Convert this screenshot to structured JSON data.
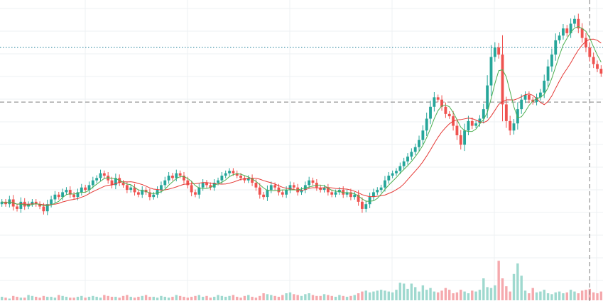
{
  "chart_data": {
    "type": "candlestick",
    "title": "",
    "xlabel": "",
    "ylabel": "",
    "grid": true,
    "legend": "none",
    "ylim": [
      0,
      100
    ],
    "volume_ylim": [
      0,
      100
    ],
    "reference_lines": {
      "dotted_level": 91,
      "crosshair_level": 68,
      "crosshair_x_index": 155
    },
    "colors": {
      "up": "#26a69a",
      "down": "#ef5350",
      "volume_up": "#9fd9cf",
      "volume_down": "#f5a9ad",
      "ma_fast": "#4caf50",
      "ma_slow": "#e53935",
      "grid": "#eef0f3",
      "dotted_line": "#1e7f99",
      "crosshair": "#7c7c7c"
    },
    "series": [
      {
        "name": "",
        "type": "ohlc",
        "close": [
          26,
          25,
          27,
          24,
          23,
          26,
          24,
          25,
          26,
          25,
          24,
          22,
          25,
          27,
          29,
          28,
          30,
          31,
          29,
          28,
          30,
          32,
          31,
          33,
          35,
          36,
          38,
          37,
          35,
          33,
          36,
          34,
          33,
          31,
          32,
          30,
          29,
          31,
          30,
          28,
          29,
          31,
          33,
          35,
          37,
          36,
          38,
          37,
          35,
          33,
          30,
          29,
          32,
          34,
          33,
          32,
          34,
          35,
          37,
          38,
          39,
          38,
          37,
          36,
          35,
          36,
          34,
          32,
          29,
          28,
          31,
          33,
          32,
          30,
          29,
          31,
          33,
          32,
          30,
          31,
          33,
          35,
          34,
          32,
          31,
          32,
          30,
          29,
          30,
          31,
          29,
          30,
          28,
          29,
          26,
          23,
          25,
          28,
          30,
          31,
          32,
          35,
          37,
          38,
          39,
          41,
          43,
          45,
          47,
          49,
          52,
          56,
          61,
          66,
          70,
          69,
          66,
          63,
          62,
          58,
          54,
          50,
          56,
          60,
          58,
          59,
          61,
          65,
          75,
          87,
          91,
          88,
          67,
          60,
          56,
          59,
          65,
          69,
          71,
          69,
          68,
          70,
          72,
          77,
          83,
          88,
          94,
          96,
          99,
          97,
          101,
          103,
          99,
          95,
          91,
          87,
          84,
          82,
          80
        ]
      },
      {
        "name": "",
        "type": "ma",
        "period": 5
      },
      {
        "name": "",
        "type": "ma",
        "period": 12
      }
    ],
    "volume": [
      4,
      3,
      2,
      5,
      4,
      3,
      3,
      6,
      5,
      4,
      3,
      5,
      4,
      4,
      3,
      6,
      5,
      4,
      3,
      3,
      4,
      5,
      3,
      4,
      5,
      4,
      3,
      6,
      5,
      4,
      4,
      3,
      5,
      6,
      4,
      3,
      4,
      5,
      6,
      4,
      4,
      3,
      5,
      4,
      3,
      4,
      6,
      5,
      4,
      3,
      4,
      5,
      6,
      4,
      5,
      3,
      4,
      6,
      5,
      4,
      5,
      6,
      4,
      3,
      5,
      6,
      4,
      3,
      5,
      8,
      7,
      6,
      5,
      4,
      6,
      8,
      9,
      7,
      6,
      5,
      7,
      8,
      6,
      5,
      5,
      7,
      6,
      5,
      4,
      6,
      5,
      4,
      5,
      6,
      8,
      10,
      11,
      9,
      10,
      11,
      12,
      11,
      10,
      9,
      12,
      20,
      19,
      13,
      19,
      15,
      10,
      17,
      12,
      14,
      10,
      9,
      11,
      14,
      12,
      8,
      9,
      12,
      10,
      8,
      11,
      10,
      12,
      25,
      15,
      14,
      17,
      45,
      25,
      16,
      10,
      30,
      42,
      28,
      11,
      8,
      14,
      9,
      10,
      12,
      8,
      7,
      9,
      10,
      8,
      9,
      12,
      10,
      8,
      11,
      12,
      13,
      9,
      8,
      10
    ]
  }
}
